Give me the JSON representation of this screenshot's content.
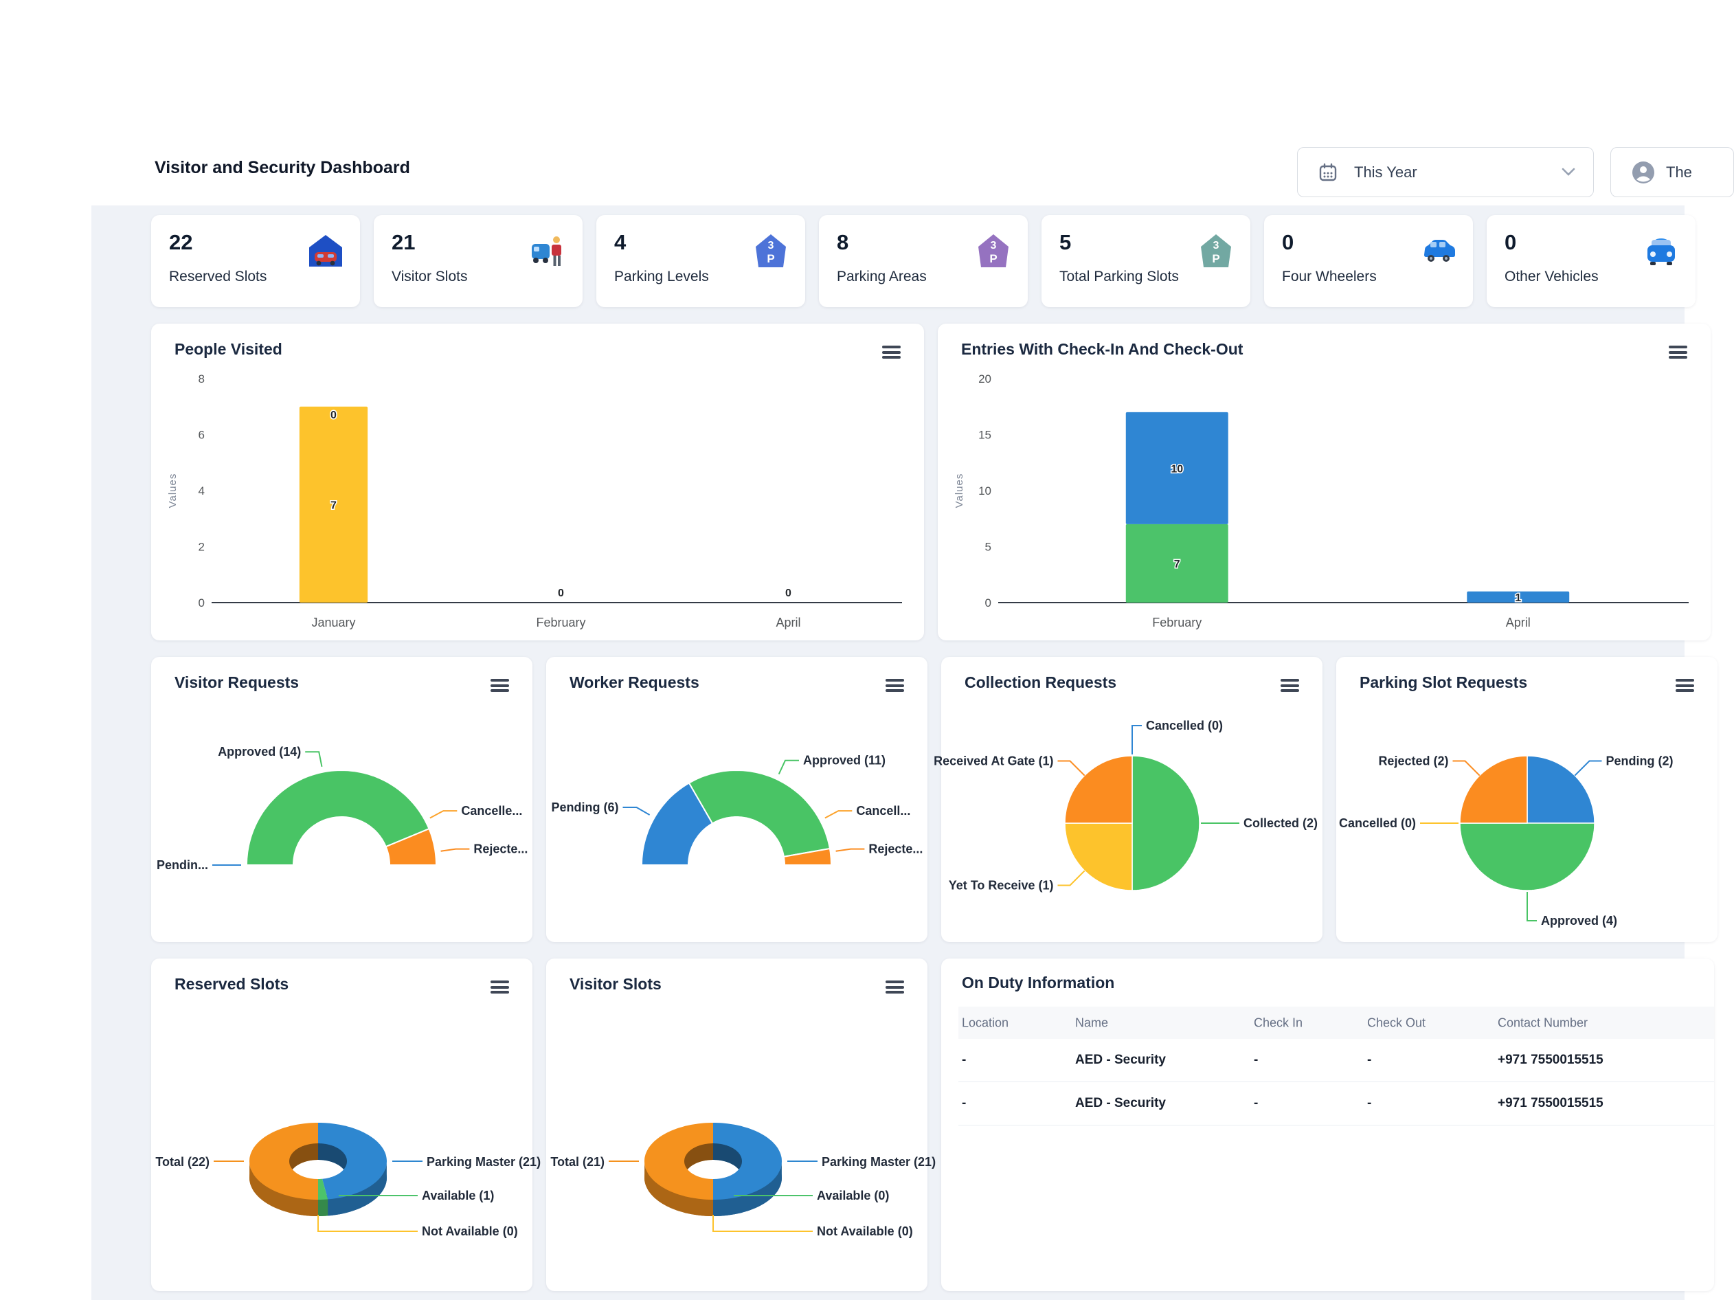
{
  "header": {
    "title": "Visitor and Security Dashboard",
    "period_selector": {
      "value": "This Year",
      "icon": "calendar-icon"
    },
    "user_menu": {
      "label": "The",
      "icon": "user-icon"
    }
  },
  "stat_cards": [
    {
      "value": "22",
      "label": "Reserved Slots",
      "icon": "garage-car-icon"
    },
    {
      "value": "21",
      "label": "Visitor Slots",
      "icon": "car-person-icon"
    },
    {
      "value": "4",
      "label": "Parking Levels",
      "icon": "parking-3p-blue-icon"
    },
    {
      "value": "8",
      "label": "Parking Areas",
      "icon": "parking-3p-purple-icon"
    },
    {
      "value": "5",
      "label": "Total Parking Slots",
      "icon": "parking-3p-teal-icon"
    },
    {
      "value": "0",
      "label": "Four Wheelers",
      "icon": "suv-icon"
    },
    {
      "value": "0",
      "label": "Other Vehicles",
      "icon": "car-front-icon"
    }
  ],
  "chart_data": [
    {
      "id": "people-visited",
      "type": "bar",
      "title": "People Visited",
      "ylabel": "Values",
      "ylim": [
        0,
        8
      ],
      "yticks": [
        0,
        2,
        4,
        6,
        8
      ],
      "categories": [
        "January",
        "February",
        "April"
      ],
      "bars": [
        {
          "category": "January",
          "segments": [
            {
              "value": 7,
              "label": "7",
              "color": "#fdc32c"
            }
          ],
          "top_label": "0"
        },
        {
          "category": "February",
          "segments": [],
          "top_label": "0"
        },
        {
          "category": "April",
          "segments": [],
          "top_label": "0"
        }
      ]
    },
    {
      "id": "entries",
      "type": "bar",
      "title": "Entries With Check-In And Check-Out",
      "ylabel": "Values",
      "ylim": [
        0,
        20
      ],
      "yticks": [
        0,
        5,
        10,
        15,
        20
      ],
      "categories": [
        "February",
        "April"
      ],
      "bars": [
        {
          "category": "February",
          "segments": [
            {
              "value": 7,
              "label": "7",
              "color": "#4cc36a"
            },
            {
              "value": 10,
              "label": "10",
              "color": "#2f86d3"
            }
          ]
        },
        {
          "category": "April",
          "segments": [
            {
              "value": 1,
              "label": "1",
              "color": "#2f86d3"
            }
          ]
        }
      ]
    },
    {
      "id": "visitor-requests",
      "type": "semi_donut",
      "title": "Visitor Requests",
      "slices": [
        {
          "label": "Pendin...",
          "value": 0,
          "color": "#2f86d3",
          "side": "left"
        },
        {
          "label": "Approved (14)",
          "value": 14,
          "color": "#49c465",
          "side": "left"
        },
        {
          "label": "Cancelle...",
          "value": 0,
          "color": "#fca32c",
          "side": "right",
          "label_angle": 332
        },
        {
          "label": "Rejecte...",
          "value": 2,
          "color": "#fb8c20",
          "side": "right",
          "label_angle": 352
        }
      ]
    },
    {
      "id": "worker-requests",
      "type": "semi_donut",
      "title": "Worker Requests",
      "slices": [
        {
          "label": "Pending (6)",
          "value": 6,
          "color": "#2f86d3",
          "side": "left"
        },
        {
          "label": "Approved (11)",
          "value": 11,
          "color": "#49c465",
          "side": "right"
        },
        {
          "label": "Cancell...",
          "value": 0,
          "color": "#fca32c",
          "side": "right",
          "label_angle": 332
        },
        {
          "label": "Rejecte...",
          "value": 1,
          "color": "#fb8c20",
          "side": "right",
          "label_angle": 352
        }
      ]
    },
    {
      "id": "collection-requests",
      "type": "pie",
      "title": "Collection Requests",
      "slices": [
        {
          "label": "Cancelled (0)",
          "value": 0,
          "color": "#2f86d3"
        },
        {
          "label": "Collected (2)",
          "value": 2,
          "color": "#49c465"
        },
        {
          "label": "Yet To Receive (1)",
          "value": 1,
          "color": "#fdc32c"
        },
        {
          "label": "Received At Gate (1)",
          "value": 1,
          "color": "#fb8c20"
        }
      ]
    },
    {
      "id": "parking-slot-requests",
      "type": "pie",
      "title": "Parking Slot Requests",
      "slices": [
        {
          "label": "Pending (2)",
          "value": 2,
          "color": "#2f86d3"
        },
        {
          "label": "Approved (4)",
          "value": 4,
          "color": "#49c465"
        },
        {
          "label": "Cancelled (0)",
          "value": 0,
          "color": "#fdc32c"
        },
        {
          "label": "Rejected (2)",
          "value": 2,
          "color": "#fb8c20"
        }
      ]
    },
    {
      "id": "reserved-slots",
      "type": "donut3d",
      "title": "Reserved Slots",
      "slices": [
        {
          "label": "Parking Master (21)",
          "value": 21,
          "color": "#2e87d0",
          "leader": "right"
        },
        {
          "label": "Available (1)",
          "value": 1,
          "color": "#4cc36a",
          "leader": "bottom-1"
        },
        {
          "label": "Not Available (0)",
          "value": 0,
          "color": "#fdc32c",
          "leader": "bottom-2"
        },
        {
          "label": "Total (22)",
          "value": 22,
          "color": "#f5921e",
          "leader": "left"
        }
      ]
    },
    {
      "id": "visitor-slots",
      "type": "donut3d",
      "title": "Visitor Slots",
      "slices": [
        {
          "label": "Parking Master (21)",
          "value": 21,
          "color": "#2e87d0",
          "leader": "right"
        },
        {
          "label": "Available (0)",
          "value": 0,
          "color": "#4cc36a",
          "leader": "bottom-1"
        },
        {
          "label": "Not Available (0)",
          "value": 0,
          "color": "#fdc32c",
          "leader": "bottom-2"
        },
        {
          "label": "Total (21)",
          "value": 21,
          "color": "#f5921e",
          "leader": "left"
        }
      ]
    }
  ],
  "on_duty": {
    "title": "On Duty Information",
    "columns": [
      "Location",
      "Name",
      "Check In",
      "Check Out",
      "Contact Number"
    ],
    "rows": [
      [
        "-",
        "AED - Security",
        "-",
        "-",
        "+971 7550015515"
      ],
      [
        "-",
        "AED - Security",
        "-",
        "-",
        "+971 7550015515"
      ]
    ]
  }
}
